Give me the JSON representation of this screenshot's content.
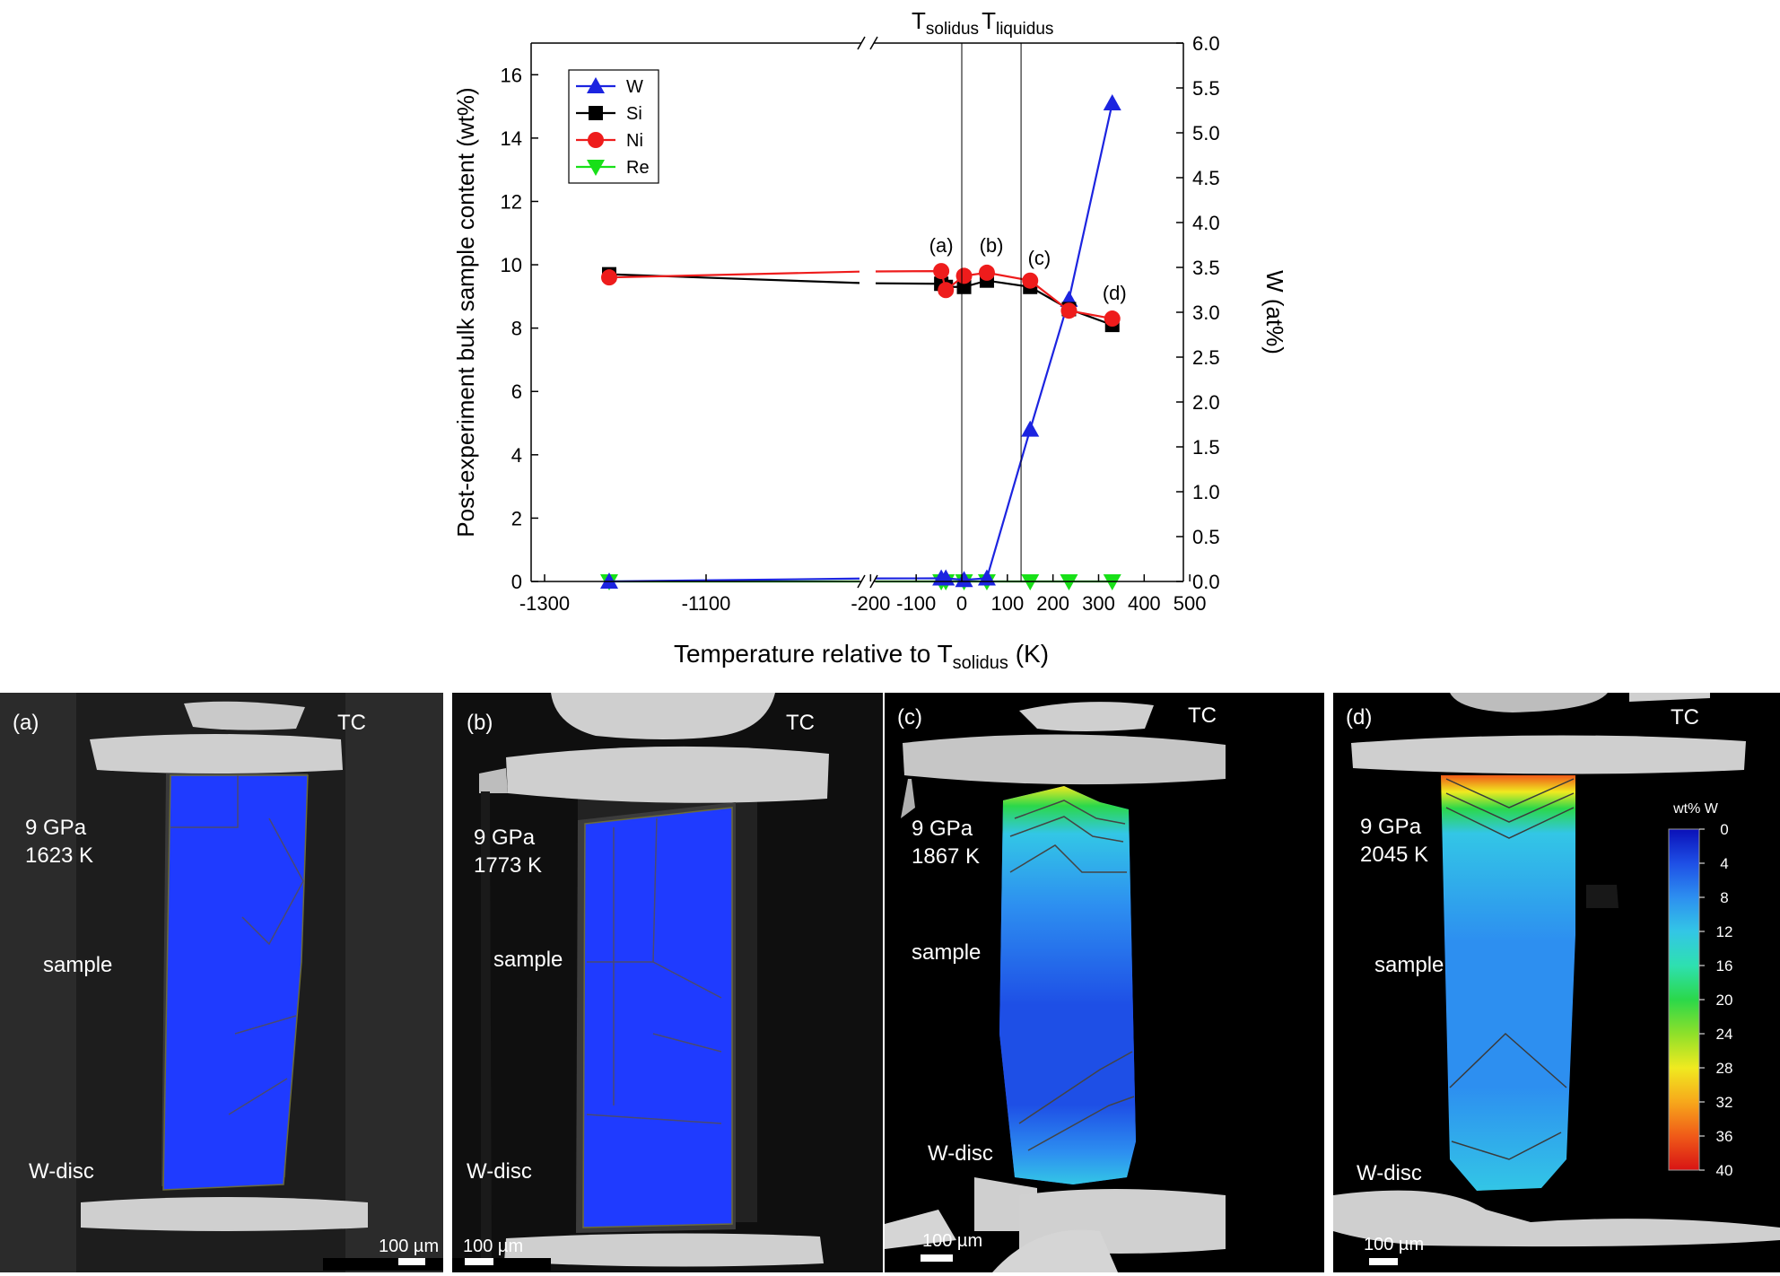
{
  "chart_data": {
    "type": "line",
    "xlabel_main": "Temperature relative to T",
    "xlabel_sub": "solidus",
    "xlabel_unit": " (K)",
    "ylabel_left": "Post-experiment bulk sample content (wt%)",
    "ylabel_right": "W (at%)",
    "ylim_left": [
      0,
      17
    ],
    "ylim_right": [
      0,
      6.0
    ],
    "xticks_left": [
      "-1300",
      "-1100"
    ],
    "xticks_right": [
      "-200",
      "-100",
      "0",
      "100",
      "200",
      "300",
      "400",
      "500"
    ],
    "yticks_left": [
      "0",
      "2",
      "4",
      "6",
      "8",
      "10",
      "12",
      "14",
      "16"
    ],
    "yticks_right": [
      "0.0",
      "0.5",
      "1.0",
      "1.5",
      "2.0",
      "2.5",
      "3.0",
      "3.5",
      "4.0",
      "4.5",
      "5.0",
      "5.5",
      "6.0"
    ],
    "vlines": [
      {
        "x": 0,
        "label_main": "T",
        "label_sub": "solidus"
      },
      {
        "x": 130,
        "label_main": "T",
        "label_sub": "liquidus"
      }
    ],
    "series": [
      {
        "name": "W",
        "color": "#1c24e0",
        "marker": "triangle-up",
        "x": [
          -1220,
          -45,
          -35,
          5,
          55,
          150,
          235,
          330
        ],
        "values": [
          0,
          0.1,
          0.1,
          0.05,
          0.1,
          4.8,
          8.9,
          15.1
        ]
      },
      {
        "name": "Si",
        "color": "#000000",
        "marker": "square",
        "x": [
          -1220,
          -45,
          -35,
          5,
          55,
          150,
          235,
          330
        ],
        "values": [
          9.7,
          9.4,
          9.3,
          9.3,
          9.5,
          9.3,
          8.6,
          8.1
        ]
      },
      {
        "name": "Ni",
        "color": "#ee1c1c",
        "marker": "circle",
        "x": [
          -1220,
          -45,
          -35,
          5,
          55,
          150,
          235,
          330
        ],
        "values": [
          9.6,
          9.8,
          9.2,
          9.65,
          9.75,
          9.5,
          8.55,
          8.3
        ]
      },
      {
        "name": "Re",
        "color": "#18e018",
        "marker": "triangle-down",
        "x": [
          -1220,
          -45,
          -35,
          5,
          55,
          150,
          235,
          330
        ],
        "values": [
          0,
          0,
          0,
          0,
          0,
          0,
          0,
          0
        ]
      }
    ],
    "annotations": [
      {
        "text": "(a)",
        "x": -45,
        "y": 10.4
      },
      {
        "text": "(b)",
        "x": 65,
        "y": 10.4
      },
      {
        "text": "(c)",
        "x": 170,
        "y": 10.0
      },
      {
        "text": "(d)",
        "x": 335,
        "y": 8.9
      }
    ],
    "legend_position": "top-left"
  },
  "panels": [
    {
      "letter": "(a)",
      "pressure": "9 GPa",
      "temperature": "1623 K",
      "scale": "100 µm"
    },
    {
      "letter": "(b)",
      "pressure": "9 GPa",
      "temperature": "1773 K",
      "scale": "100 µm"
    },
    {
      "letter": "(c)",
      "pressure": "9 GPa",
      "temperature": "1867 K",
      "scale": "100 µm"
    },
    {
      "letter": "(d)",
      "pressure": "9 GPa",
      "temperature": "2045 K",
      "scale": "100 µm"
    }
  ],
  "labels": {
    "tc": "TC",
    "sample": "sample",
    "wdisc": "W-disc"
  },
  "colorbar": {
    "title": "wt% W",
    "ticks": [
      "0",
      "4",
      "8",
      "12",
      "16",
      "20",
      "24",
      "28",
      "32",
      "36",
      "40"
    ],
    "colors": [
      "#0a10b8",
      "#1e4fe6",
      "#2d8ff0",
      "#33c6e6",
      "#2ee0b0",
      "#2bd84a",
      "#8ee02a",
      "#f0ea20",
      "#f7a81b",
      "#f05a18",
      "#d81414"
    ]
  }
}
